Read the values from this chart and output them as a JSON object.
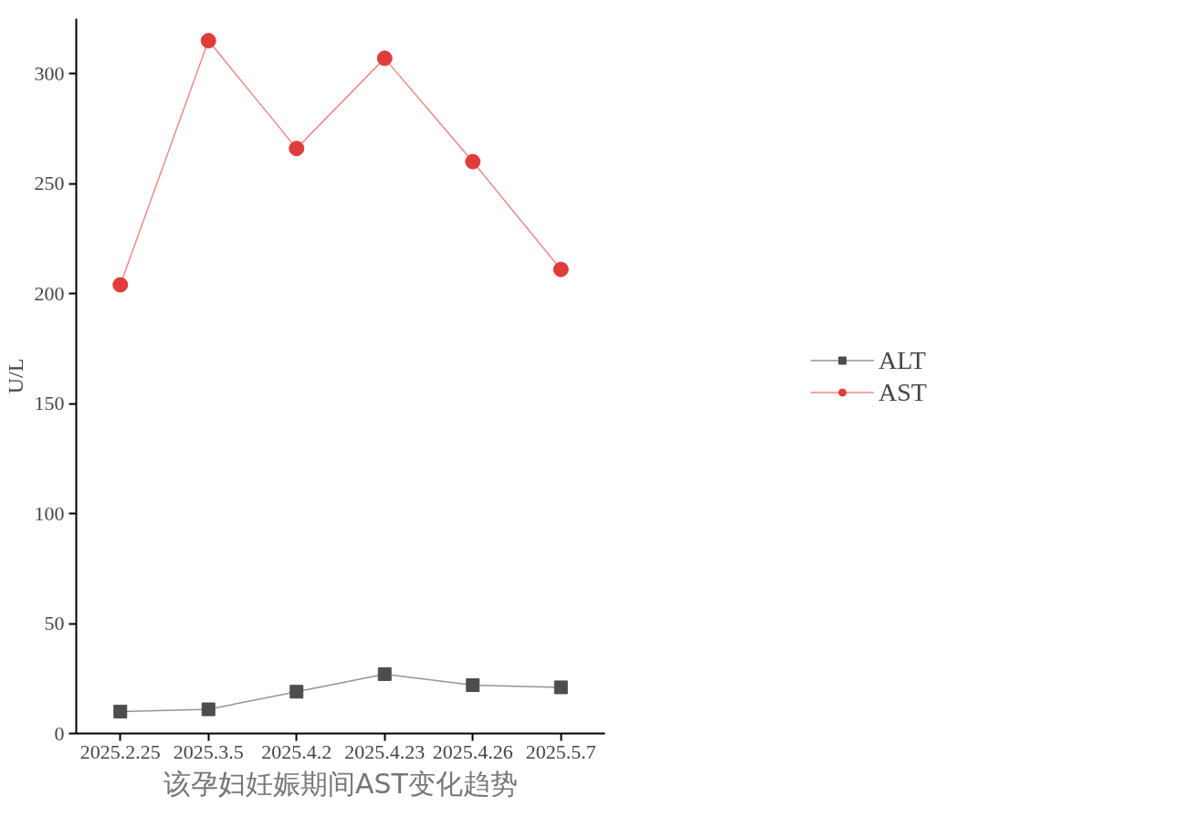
{
  "chart_data": {
    "type": "line",
    "ylabel": "U/L",
    "categories": [
      "2025.2.25",
      "2025.3.5",
      "2025.4.2",
      "2025.4.23",
      "2025.4.26",
      "2025.5.7"
    ],
    "series": [
      {
        "name": "ALT",
        "color": "#4d4d4d",
        "marker": "square",
        "values": [
          10,
          11,
          19,
          27,
          22,
          21
        ]
      },
      {
        "name": "AST",
        "color": "#e03c3c",
        "marker": "circle",
        "values": [
          204,
          315,
          266,
          307,
          260,
          211
        ]
      }
    ],
    "ylim": [
      0,
      325
    ],
    "yticks": [
      0,
      50,
      100,
      150,
      200,
      250,
      300
    ],
    "grid": false,
    "legend": "right",
    "annotations": [
      "该孕妇妊娠期间AST变化趋势"
    ]
  }
}
